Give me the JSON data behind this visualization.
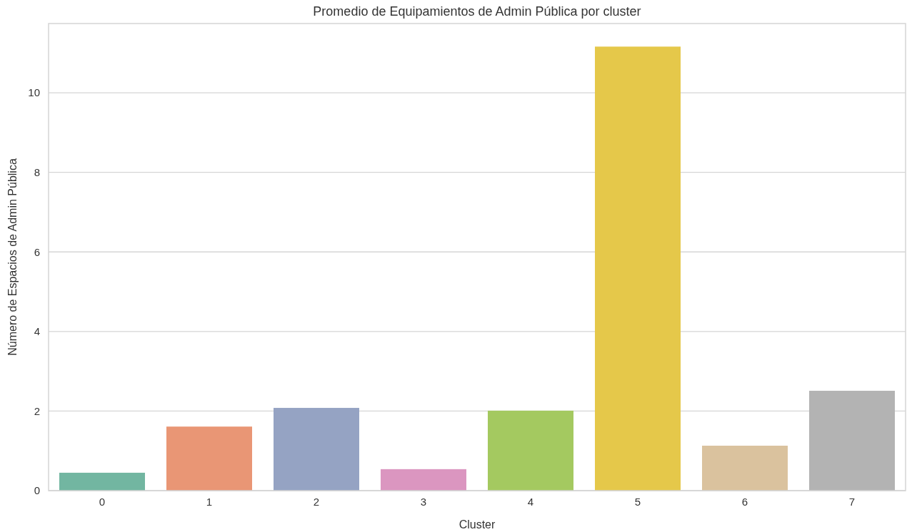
{
  "chart_data": {
    "type": "bar",
    "title": "Promedio de Equipamientos de Admin Pública por cluster",
    "xlabel": "Cluster",
    "ylabel": "Número de Espacios de Admin Pública",
    "categories": [
      "0",
      "1",
      "2",
      "3",
      "4",
      "5",
      "6",
      "7"
    ],
    "values": [
      0.45,
      1.61,
      2.08,
      0.54,
      2.01,
      11.16,
      1.13,
      2.51
    ],
    "colors": [
      "#72b6a1",
      "#e99675",
      "#95a3c3",
      "#db96c0",
      "#a4c960",
      "#e5c84a",
      "#dac29e",
      "#b3b3b3"
    ],
    "ylim": [
      0,
      11.74
    ],
    "yticks": [
      0,
      2,
      4,
      6,
      8,
      10
    ],
    "grid": "y"
  }
}
